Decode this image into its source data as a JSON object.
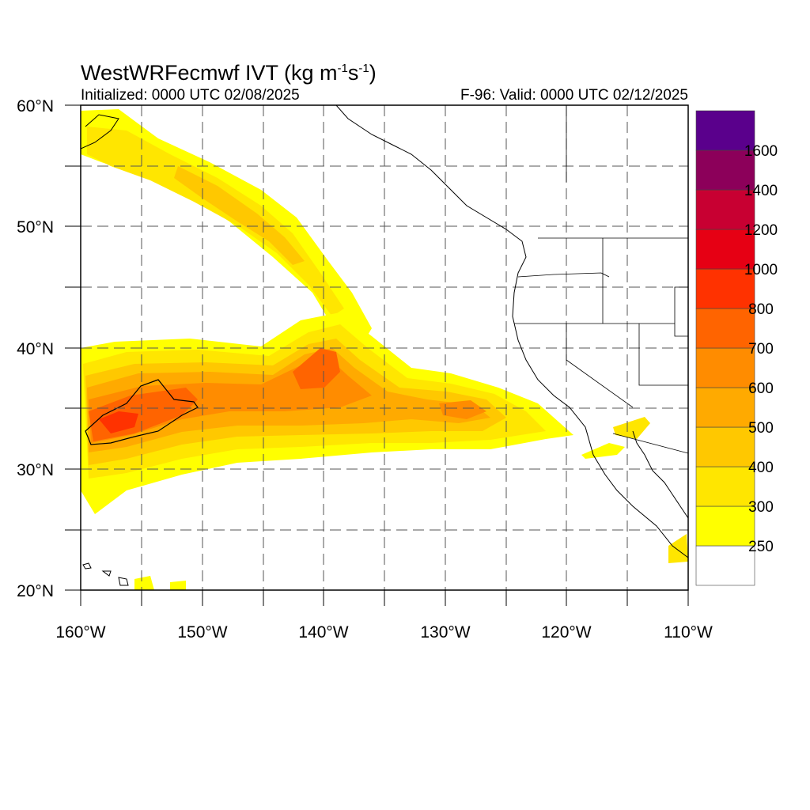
{
  "title": {
    "prefix": "WestWRFecmwf IVT (kg m",
    "exp1": "-1",
    "mid": "s",
    "exp2": "-1",
    "suffix": ")"
  },
  "subtitle_left": "Initialized: 0000 UTC 02/08/2025",
  "subtitle_right": "F-96: Valid: 0000 UTC 02/12/2025",
  "map": {
    "lon_range": [
      -160,
      -110
    ],
    "lat_range": [
      20,
      60
    ],
    "grid": true,
    "lon_labels": [
      {
        "lon": -160,
        "text": "160°W"
      },
      {
        "lon": -150,
        "text": "150°W"
      },
      {
        "lon": -140,
        "text": "140°W"
      },
      {
        "lon": -130,
        "text": "130°W"
      },
      {
        "lon": -120,
        "text": "120°W"
      },
      {
        "lon": -110,
        "text": "110°W"
      }
    ],
    "lat_labels": [
      {
        "lat": 60,
        "text": "60°N"
      },
      {
        "lat": 50,
        "text": "50°N"
      },
      {
        "lat": 40,
        "text": "40°N"
      },
      {
        "lat": 30,
        "text": "30°N"
      },
      {
        "lat": 20,
        "text": "20°N"
      }
    ]
  },
  "colorbar": {
    "levels": [
      {
        "label": "",
        "color": "#ffffff"
      },
      {
        "label": "250",
        "color": "#ffff00"
      },
      {
        "label": "300",
        "color": "#ffe600"
      },
      {
        "label": "400",
        "color": "#ffc800"
      },
      {
        "label": "500",
        "color": "#ffaa00"
      },
      {
        "label": "600",
        "color": "#ff8c00"
      },
      {
        "label": "700",
        "color": "#ff6400"
      },
      {
        "label": "800",
        "color": "#ff3200"
      },
      {
        "label": "1000",
        "color": "#e60014"
      },
      {
        "label": "1200",
        "color": "#c80032"
      },
      {
        "label": "1400",
        "color": "#8c005a"
      },
      {
        "label": "1600",
        "color": "#5a008c"
      }
    ]
  }
}
